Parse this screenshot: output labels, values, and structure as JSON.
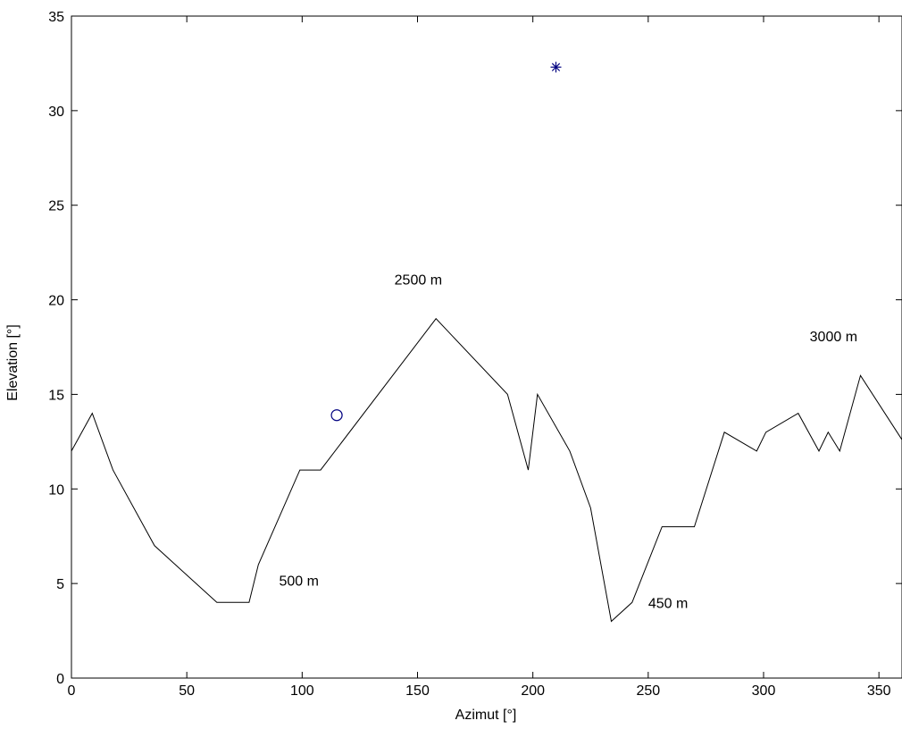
{
  "chart_data": {
    "type": "line",
    "title": "",
    "xlabel": "Azimut [°]",
    "ylabel": "Elevation [°]",
    "xlim": [
      0,
      360
    ],
    "ylim": [
      0,
      35
    ],
    "xticks": [
      0,
      50,
      100,
      150,
      200,
      250,
      300,
      350
    ],
    "yticks": [
      0,
      5,
      10,
      15,
      20,
      25,
      30,
      35
    ],
    "grid": false,
    "series": [
      {
        "x": [
          0,
          9,
          18,
          36,
          63,
          77,
          81,
          99,
          108,
          158,
          189,
          198,
          202,
          216,
          225,
          234,
          243,
          256,
          270,
          283,
          297,
          301,
          315,
          324,
          328,
          333,
          342,
          360
        ],
        "y": [
          12,
          14,
          11,
          7,
          4,
          4,
          6,
          11,
          11,
          19,
          15,
          11,
          15,
          12,
          9,
          3,
          4,
          8,
          8,
          13,
          12,
          13,
          14,
          12,
          13,
          12,
          16,
          12.6
        ],
        "color": "#000000"
      }
    ],
    "markers": [
      {
        "x": 115,
        "y": 13.9,
        "symbol": "circle",
        "color": "#000080"
      },
      {
        "x": 210,
        "y": 32.3,
        "symbol": "star",
        "color": "#000080"
      }
    ],
    "annotations": [
      {
        "text": "2500 m",
        "x": 140,
        "y": 20.8
      },
      {
        "text": "3000 m",
        "x": 320,
        "y": 17.8
      },
      {
        "text": "500 m",
        "x": 90,
        "y": 4.9
      },
      {
        "text": "450 m",
        "x": 250,
        "y": 3.7
      }
    ]
  }
}
